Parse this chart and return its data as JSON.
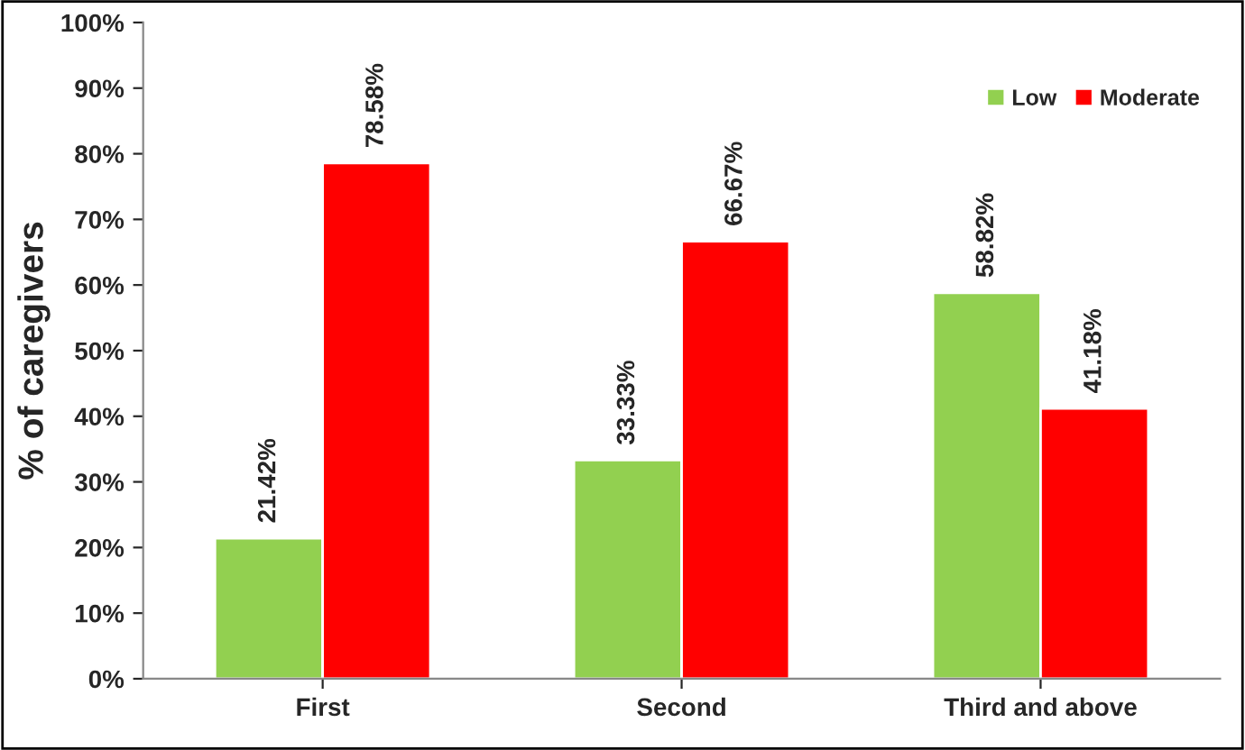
{
  "chart_data": {
    "type": "bar",
    "ylabel": "% of caregivers",
    "categories": [
      "First",
      "Second",
      "Third and above"
    ],
    "series": [
      {
        "name": "Low",
        "color": "#92d050",
        "values": [
          21.42,
          33.33,
          58.82
        ],
        "value_labels": [
          "21.42%",
          "33.33%",
          "58.82%"
        ]
      },
      {
        "name": "Moderate",
        "color": "#ff0000",
        "values": [
          78.58,
          66.67,
          41.18
        ],
        "value_labels": [
          "78.58%",
          "66.67%",
          "41.18%"
        ]
      }
    ],
    "ylim": [
      0,
      100
    ],
    "yticks": [
      {
        "value": 0,
        "label": "0%"
      },
      {
        "value": 10,
        "label": "10%"
      },
      {
        "value": 20,
        "label": "20%"
      },
      {
        "value": 30,
        "label": "30%"
      },
      {
        "value": 40,
        "label": "40%"
      },
      {
        "value": 50,
        "label": "50%"
      },
      {
        "value": 60,
        "label": "60%"
      },
      {
        "value": 70,
        "label": "70%"
      },
      {
        "value": 80,
        "label": "80%"
      },
      {
        "value": 90,
        "label": "90%"
      },
      {
        "value": 100,
        "label": "100%"
      }
    ],
    "grid": false,
    "legend": "top right"
  }
}
